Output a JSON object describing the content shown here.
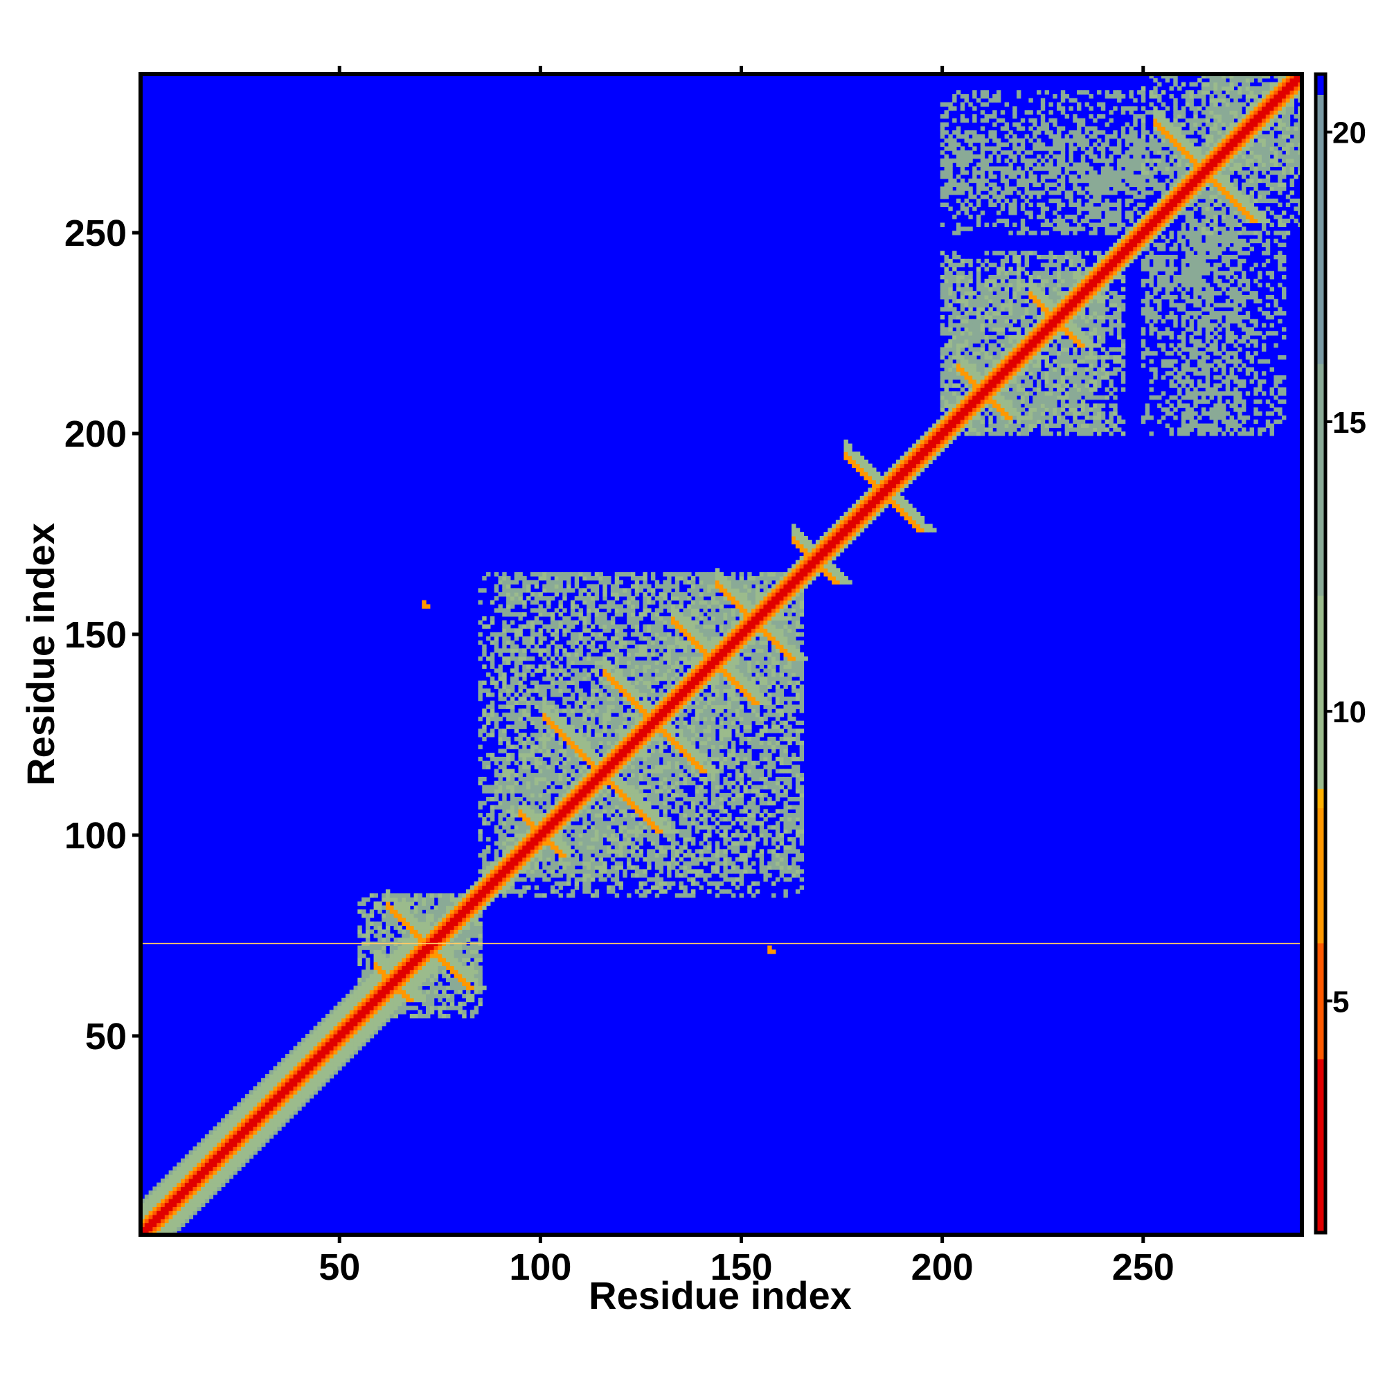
{
  "chart_data": {
    "type": "heatmap",
    "title": "",
    "xlabel": "Residue index",
    "ylabel": "Residue index",
    "n_residues": 289,
    "xlim": [
      1,
      289
    ],
    "ylim": [
      1,
      289
    ],
    "x_ticks": [
      50,
      100,
      150,
      200,
      250
    ],
    "y_ticks": [
      50,
      100,
      150,
      200,
      250
    ],
    "colorbar": {
      "range": [
        1,
        21
      ],
      "ticks": [
        5,
        10,
        15,
        20
      ],
      "colors": [
        "#e00000",
        "#ff5a00",
        "#ff9800",
        "#ffb000",
        "#9bbb8c",
        "#8aaa96",
        "#7a9aa4",
        "#6a8ab0"
      ],
      "stops": [
        1,
        4,
        6,
        8.3,
        8.6,
        12,
        16,
        21
      ],
      "background_color": "#0000ff",
      "background_value": 21
    },
    "diagonal_band": [
      {
        "from": 1,
        "to": 72,
        "width": 8
      },
      {
        "from": 72,
        "to": 289,
        "width": 4
      }
    ],
    "cross_contact_clusters": [
      {
        "center": [
          72,
          72
        ],
        "size": 10
      },
      {
        "center": [
          63,
          63
        ],
        "size": 4
      },
      {
        "center": [
          100,
          100
        ],
        "size": 5
      },
      {
        "center": [
          115,
          115
        ],
        "size": 14
      },
      {
        "center": [
          128,
          128
        ],
        "size": 12
      },
      {
        "center": [
          143,
          143
        ],
        "size": 10
      },
      {
        "center": [
          153,
          153
        ],
        "size": 9
      },
      {
        "center": [
          168,
          168
        ],
        "size": 5
      },
      {
        "center": [
          185,
          185
        ],
        "size": 9
      },
      {
        "center": [
          210,
          210
        ],
        "size": 6
      },
      {
        "center": [
          228,
          228
        ],
        "size": 6
      },
      {
        "center": [
          265,
          265
        ],
        "size": 12
      }
    ],
    "sparse_contact_regions": [
      {
        "x": [
          85,
          165
        ],
        "y": [
          90,
          165
        ],
        "value": 11
      },
      {
        "x": [
          55,
          85
        ],
        "y": [
          60,
          85
        ],
        "value": 11
      },
      {
        "x": [
          200,
          245
        ],
        "y": [
          200,
          240
        ],
        "value": 11
      },
      {
        "x": [
          250,
          285
        ],
        "y": [
          200,
          250
        ],
        "value": 12
      },
      {
        "x": [
          200,
          260
        ],
        "y": [
          260,
          275
        ],
        "value": 12
      },
      {
        "x": [
          265,
          289
        ],
        "y": [
          250,
          289
        ],
        "value": 11
      }
    ],
    "isolated_contacts": [
      {
        "x": 71,
        "y": 157,
        "value": 6
      },
      {
        "x": 157,
        "y": 71,
        "value": 6
      }
    ],
    "highlight_row": {
      "residue": 73,
      "color": "#ffcc66"
    }
  }
}
